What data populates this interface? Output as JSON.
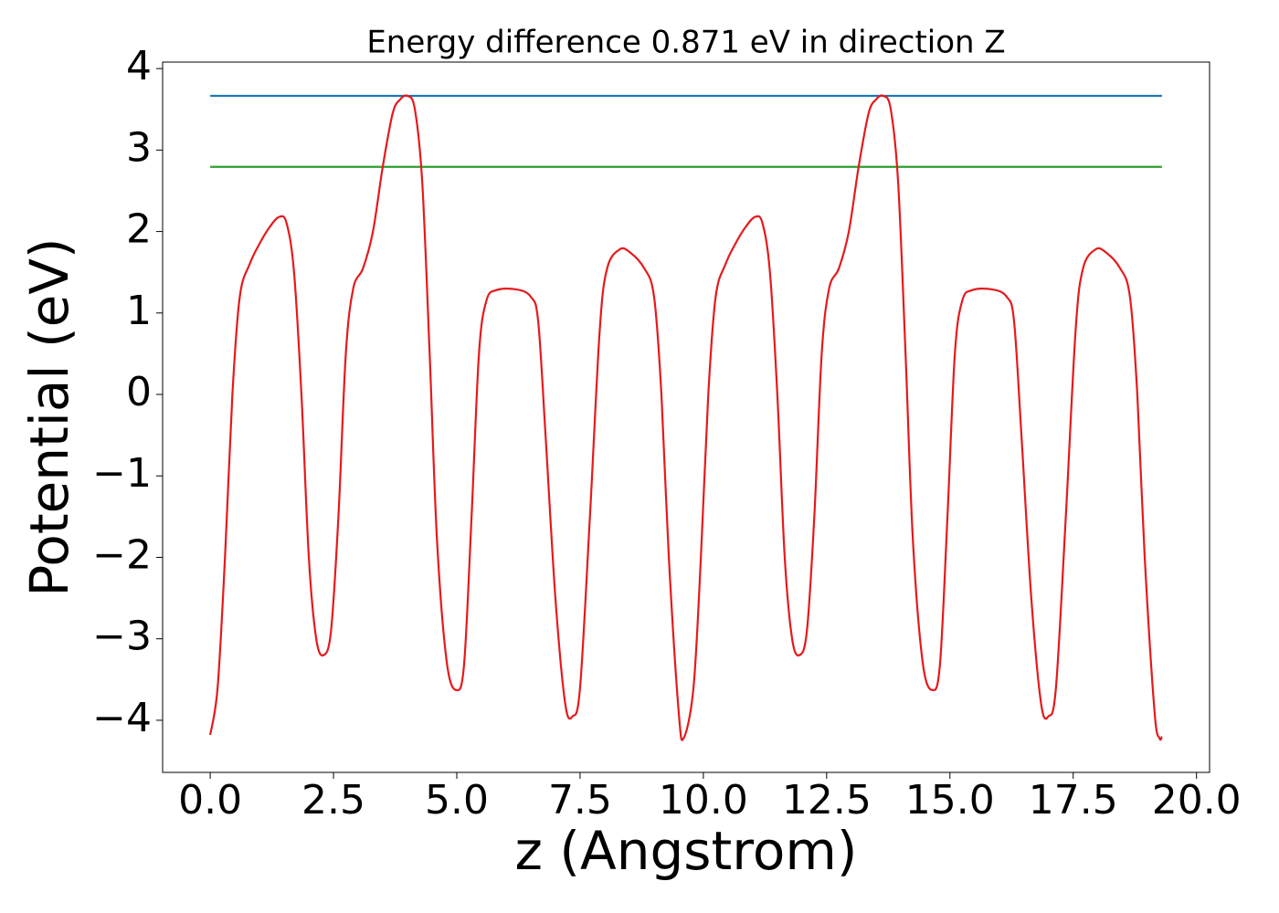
{
  "chart_data": {
    "type": "line",
    "title": "Energy difference 0.871 eV in direction Z",
    "xlabel": "z (Angstrom)",
    "ylabel": "Potential (eV)",
    "xlim": [
      -0.965,
      20.265
    ],
    "ylim": [
      -4.64,
      4.08
    ],
    "xticks": [
      {
        "value": 0,
        "label": "0.0"
      },
      {
        "value": 2.5,
        "label": "2.5"
      },
      {
        "value": 5,
        "label": "5.0"
      },
      {
        "value": 7.5,
        "label": "7.5"
      },
      {
        "value": 10,
        "label": "10.0"
      },
      {
        "value": 12.5,
        "label": "12.5"
      },
      {
        "value": 15,
        "label": "15.0"
      },
      {
        "value": 17.5,
        "label": "17.5"
      },
      {
        "value": 20,
        "label": "20.0"
      }
    ],
    "yticks": [
      {
        "value": -4,
        "label": "−4"
      },
      {
        "value": -3,
        "label": "−3"
      },
      {
        "value": -2,
        "label": "−2"
      },
      {
        "value": -1,
        "label": "−1"
      },
      0,
      1,
      2,
      3,
      4
    ],
    "grid": false,
    "series": [
      {
        "color": "#1f77b4",
        "x": [
          0,
          19.3
        ],
        "values": [
          3.665,
          3.665
        ]
      },
      {
        "color": "#2ca02c",
        "x": [
          0,
          19.3
        ],
        "values": [
          2.794,
          2.794
        ]
      },
      {
        "color": "#e41a1c",
        "x": [
          0.0,
          0.15,
          0.3,
          0.45,
          0.6,
          0.8,
          1.0,
          1.2,
          1.4,
          1.55,
          1.7,
          1.85,
          2.0,
          2.15,
          2.3,
          2.45,
          2.6,
          2.75,
          2.9,
          3.1,
          3.3,
          3.5,
          3.7,
          3.85,
          4.0,
          4.15,
          4.3,
          4.45,
          4.6,
          4.8,
          5.0,
          5.15,
          5.3,
          5.45,
          5.6,
          5.8,
          6.2,
          6.5,
          6.65,
          6.8,
          7.0,
          7.2,
          7.35,
          7.5,
          7.7,
          7.9,
          8.05,
          8.3,
          8.5,
          8.8,
          9.0,
          9.15,
          9.3,
          9.5,
          9.6,
          9.8,
          9.95,
          10.1,
          10.25,
          10.45,
          10.65,
          10.85,
          11.05,
          11.2,
          11.35,
          11.5,
          11.65,
          11.8,
          11.95,
          12.1,
          12.25,
          12.4,
          12.55,
          12.75,
          12.95,
          13.15,
          13.35,
          13.5,
          13.65,
          13.8,
          13.95,
          14.1,
          14.25,
          14.45,
          14.65,
          14.8,
          14.95,
          15.1,
          15.25,
          15.45,
          15.85,
          16.15,
          16.3,
          16.45,
          16.65,
          16.85,
          17.0,
          17.15,
          17.35,
          17.55,
          17.7,
          17.95,
          18.15,
          18.45,
          18.65,
          18.8,
          18.95,
          19.15,
          19.25,
          19.3
        ],
        "values": [
          -4.18,
          -3.6,
          -2.0,
          0.0,
          1.2,
          1.6,
          1.85,
          2.05,
          2.18,
          2.1,
          1.5,
          0.0,
          -2.0,
          -3.0,
          -3.2,
          -2.9,
          -1.5,
          0.5,
          1.3,
          1.55,
          2.0,
          2.8,
          3.45,
          3.62,
          3.665,
          3.5,
          2.6,
          0.5,
          -1.8,
          -3.3,
          -3.63,
          -3.3,
          -1.5,
          0.5,
          1.15,
          1.28,
          1.29,
          1.2,
          0.9,
          -0.5,
          -2.5,
          -3.8,
          -3.95,
          -3.6,
          -1.5,
          0.8,
          1.55,
          1.78,
          1.75,
          1.55,
          1.2,
          0.0,
          -2.0,
          -3.9,
          -4.22,
          -3.6,
          -2.0,
          0.0,
          1.2,
          1.6,
          1.85,
          2.05,
          2.18,
          2.1,
          1.5,
          0.0,
          -2.0,
          -3.0,
          -3.2,
          -2.9,
          -1.5,
          0.5,
          1.3,
          1.55,
          2.0,
          2.8,
          3.45,
          3.62,
          3.665,
          3.5,
          2.6,
          0.5,
          -1.8,
          -3.3,
          -3.63,
          -3.3,
          -1.5,
          0.5,
          1.15,
          1.28,
          1.29,
          1.2,
          0.9,
          -0.5,
          -2.5,
          -3.8,
          -3.95,
          -3.6,
          -1.5,
          0.8,
          1.55,
          1.78,
          1.75,
          1.55,
          1.2,
          0.0,
          -2.0,
          -3.9,
          -4.22,
          -4.2
        ]
      }
    ]
  }
}
